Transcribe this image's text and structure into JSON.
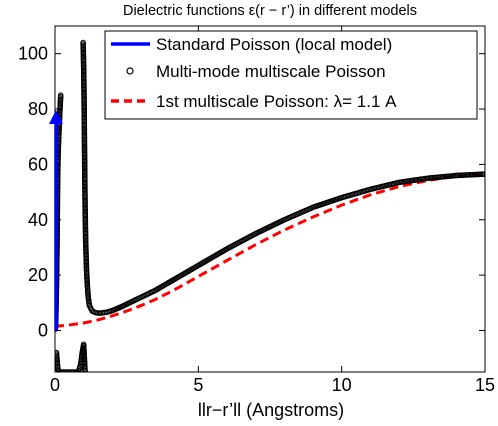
{
  "chart_data": {
    "type": "line",
    "title": "Dielectric functions ε(r − r’) in different models",
    "xlabel": "llr−r’ll (Angstroms)",
    "ylabel": "",
    "xlim": [
      0,
      15
    ],
    "ylim": [
      -15,
      110
    ],
    "xticks": [
      "0",
      "5",
      "10",
      "15"
    ],
    "yticks": [
      "0",
      "20",
      "40",
      "60",
      "80",
      "100"
    ],
    "grid": false,
    "legend_position": "top-right",
    "series": [
      {
        "name": "Standard Poisson (local model)",
        "style": "solid-arrow",
        "color": "#0000ff",
        "x": [
          0,
          0
        ],
        "y": [
          0,
          80
        ]
      },
      {
        "name": "Multi-mode multiscale Poisson",
        "style": "circle-markers",
        "color": "#000000",
        "branches": [
          {
            "x": [
              0.01,
              0.02,
              0.03,
              0.04,
              0.05,
              0.06,
              0.07,
              0.08,
              0.09,
              0.1,
              0.12,
              0.14,
              0.16,
              0.18,
              0.2
            ],
            "y": [
              0.5,
              1,
              5,
              10,
              15,
              22,
              30,
              40,
              52,
              60,
              67,
              72,
              77,
              81,
              85
            ]
          },
          {
            "x": [
              0.05,
              0.1,
              0.15,
              0.2,
              0.3,
              0.4,
              0.5,
              0.6,
              0.7,
              0.8,
              0.85,
              0.9,
              0.95,
              1.0,
              1.05
            ],
            "y": [
              -8,
              -14,
              -15,
              -15,
              -15,
              -15,
              -15,
              -15,
              -15,
              -15,
              -14,
              -12,
              -8,
              -5,
              -15
            ]
          },
          {
            "x": [
              0.98,
              0.99,
              1.0,
              1.01,
              1.02,
              1.03,
              1.05,
              1.07,
              1.1,
              1.13,
              1.16,
              1.2,
              1.25,
              1.3,
              1.4,
              1.5,
              1.6,
              1.8,
              2.0,
              2.3,
              2.6,
              3.0,
              3.5,
              4.0,
              4.5,
              5.0,
              6.0,
              7.0,
              8.0,
              9.0,
              10.0,
              11.0,
              12.0,
              13.0,
              14.0,
              15.0
            ],
            "y": [
              104,
              100,
              95,
              88,
              78,
              65,
              45,
              32,
              22,
              16,
              12,
              9,
              8,
              7,
              6.5,
              6.3,
              6.3,
              6.6,
              7.2,
              8.5,
              10,
              12,
              14.5,
              17.5,
              20.5,
              23.5,
              29.5,
              35,
              40,
              44.5,
              48,
              51,
              53.5,
              55,
              56,
              56.5
            ]
          }
        ]
      },
      {
        "name": "1st multiscale Poisson: λ= 1.1 A",
        "style": "dashed",
        "color": "#ff0000",
        "x": [
          0,
          0.5,
          1.0,
          1.5,
          2.0,
          2.5,
          3.0,
          3.5,
          4.0,
          4.5,
          5.0,
          6.0,
          7.0,
          8.0,
          9.0,
          10.0,
          11.0,
          12.0,
          13.0,
          14.0,
          15.0
        ],
        "y": [
          1.5,
          2.0,
          2.7,
          3.8,
          5.3,
          7.0,
          9.0,
          11.2,
          13.8,
          16.6,
          19.5,
          25.3,
          31.0,
          36.3,
          41.0,
          45.3,
          49.0,
          52.0,
          54.2,
          55.8,
          56.3
        ]
      }
    ]
  }
}
